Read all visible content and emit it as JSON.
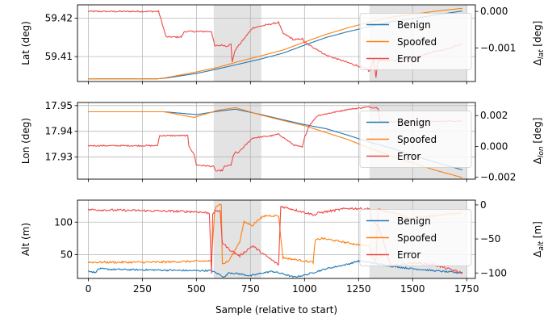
{
  "figure": {
    "xlabel": "Sample (relative to start)",
    "xlim": [
      -50,
      1790
    ],
    "xticks": [
      0,
      250,
      500,
      750,
      1000,
      1250,
      1500,
      1750
    ],
    "shaded_regions": [
      [
        580,
        800
      ],
      [
        1300,
        1750
      ]
    ],
    "colors": {
      "benign": "#1f77b4",
      "spoofed": "#ff7f0e",
      "error": "#ef4a4a",
      "shade": "#e3e3e3",
      "grid": "#b8b8b8"
    }
  },
  "chart_data": [
    {
      "type": "line",
      "ylabel": "Lat (deg)",
      "y2label": "Δ_lat [deg]",
      "ylim": [
        59.4035,
        59.4235
      ],
      "yticks": [
        59.41,
        59.42
      ],
      "ytick_labels": [
        "59.41",
        "59.42"
      ],
      "y2lim": [
        -0.00192,
        0.00018
      ],
      "y2ticks": [
        0.0,
        -0.001
      ],
      "y2tick_labels": [
        "0.000",
        "−0.001"
      ],
      "legend": [
        "Benign",
        "Spoofed",
        "Error"
      ],
      "legend_position": "right",
      "series": [
        {
          "name": "Benign",
          "axis": "left",
          "noise": 0,
          "x": [
            0,
            320,
            360,
            500,
            600,
            700,
            800,
            900,
            1000,
            1100,
            1200,
            1300,
            1400,
            1500,
            1600,
            1730
          ],
          "y": [
            59.4042,
            59.4042,
            59.4044,
            59.4056,
            59.4068,
            59.4081,
            59.4094,
            59.4109,
            59.413,
            59.415,
            59.4165,
            59.4178,
            59.4191,
            59.4199,
            59.4208,
            59.4219
          ]
        },
        {
          "name": "Spoofed",
          "axis": "left",
          "noise": 0,
          "x": [
            0,
            320,
            360,
            500,
            600,
            700,
            800,
            900,
            1000,
            1100,
            1200,
            1300,
            1400,
            1500,
            1600,
            1730
          ],
          "y": [
            59.4042,
            59.4042,
            59.4045,
            59.406,
            59.4072,
            59.4088,
            59.4102,
            59.4117,
            59.4138,
            59.4158,
            59.4175,
            59.419,
            59.4203,
            59.421,
            59.4218,
            59.4226
          ]
        },
        {
          "name": "Error",
          "axis": "right",
          "noise": 2e-05,
          "x": [
            0,
            325,
            335,
            360,
            430,
            445,
            570,
            585,
            620,
            640,
            660,
            665,
            680,
            760,
            880,
            900,
            930,
            950,
            990,
            1000,
            1060,
            1100,
            1290,
            1300,
            1320,
            1330,
            1340,
            1450,
            1500,
            1550,
            1600,
            1650,
            1700,
            1730
          ],
          "y": [
            0.0,
            0.0,
            -0.0002,
            -0.0007,
            -0.0007,
            -0.00055,
            -0.00055,
            -0.00095,
            -0.00092,
            -0.00095,
            -0.0009,
            -0.00138,
            -0.00105,
            -0.00045,
            -0.0003,
            -0.0006,
            -0.0007,
            -0.00078,
            -0.00075,
            -0.00085,
            -0.00105,
            -0.0012,
            -0.00158,
            -0.00165,
            -0.0013,
            -0.0018,
            -0.00135,
            -0.00132,
            -0.00128,
            -0.00118,
            -0.0011,
            -0.00105,
            -0.00095,
            -0.0009
          ]
        }
      ]
    },
    {
      "type": "line",
      "ylabel": "Lon (deg)",
      "y2label": "Δ_lon [deg]",
      "ylim": [
        17.9214,
        17.9512
      ],
      "yticks": [
        17.93,
        17.94,
        17.95
      ],
      "ytick_labels": [
        "17.93",
        "17.94",
        "17.95"
      ],
      "y2lim": [
        -0.00212,
        0.00285
      ],
      "y2ticks": [
        0.002,
        0.0,
        -0.002
      ],
      "y2tick_labels": [
        "0.002",
        "0.000",
        "−0.002"
      ],
      "legend": [
        "Benign",
        "Spoofed",
        "Error"
      ],
      "legend_position": "right",
      "series": [
        {
          "name": "Benign",
          "axis": "left",
          "noise": 0,
          "x": [
            0,
            350,
            500,
            600,
            680,
            800,
            900,
            1000,
            1100,
            1200,
            1300,
            1400,
            1500,
            1600,
            1730
          ],
          "y": [
            17.9476,
            17.9476,
            17.9465,
            17.9478,
            17.9486,
            17.9465,
            17.9445,
            17.9426,
            17.941,
            17.9385,
            17.9358,
            17.9335,
            17.9307,
            17.9281,
            17.925
          ]
        },
        {
          "name": "Spoofed",
          "axis": "left",
          "noise": 0,
          "x": [
            0,
            350,
            490,
            600,
            680,
            800,
            900,
            1000,
            1100,
            1200,
            1300,
            1400,
            1500,
            1600,
            1730
          ],
          "y": [
            17.9476,
            17.9476,
            17.9454,
            17.9482,
            17.9492,
            17.9463,
            17.9442,
            17.9422,
            17.9395,
            17.9368,
            17.9335,
            17.9305,
            17.9277,
            17.925,
            17.922
          ]
        },
        {
          "name": "Error",
          "axis": "right",
          "noise": 4e-05,
          "x": [
            0,
            320,
            330,
            460,
            465,
            490,
            500,
            580,
            590,
            620,
            630,
            660,
            670,
            680,
            690,
            760,
            850,
            880,
            920,
            950,
            990,
            1000,
            1020,
            1030,
            1060,
            1200,
            1290,
            1300,
            1340,
            1350,
            1500,
            1600,
            1700,
            1730
          ],
          "y": [
            5e-05,
            5e-05,
            0.0007,
            0.0007,
            5e-05,
            -0.00055,
            -0.0012,
            -0.0013,
            -0.0016,
            -0.00155,
            -0.0013,
            -0.0012,
            -0.00065,
            -0.00035,
            -0.00045,
            0.00055,
            0.0007,
            0.0008,
            0.0004,
            0.0001,
            -5e-05,
            0.00055,
            0.0013,
            0.0015,
            0.002,
            0.0024,
            0.00255,
            0.00255,
            0.0025,
            0.0016,
            0.0016,
            0.00162,
            0.00165,
            0.00165
          ]
        }
      ]
    },
    {
      "type": "line",
      "ylabel": "Alt (m)",
      "y2label": "Δ_alt [m]",
      "ylim": [
        13,
        134
      ],
      "yticks": [
        50,
        100
      ],
      "ytick_labels": [
        "50",
        "100"
      ],
      "y2lim": [
        -108,
        7
      ],
      "y2ticks": [
        0,
        -50,
        -100
      ],
      "y2tick_labels": [
        "0",
        "−50",
        "−100"
      ],
      "legend": [
        "Benign",
        "Spoofed",
        "Error"
      ],
      "legend_position": "right",
      "series": [
        {
          "name": "Benign",
          "axis": "left",
          "noise": 1.2,
          "x": [
            0,
            30,
            50,
            100,
            500,
            570,
            600,
            630,
            650,
            700,
            750,
            800,
            850,
            900,
            950,
            1000,
            1100,
            1200,
            1250,
            1300,
            1400,
            1500,
            1600,
            1700,
            1730
          ],
          "y": [
            25,
            22,
            28,
            27,
            25,
            25,
            20,
            15,
            22,
            20,
            17,
            21,
            24,
            20,
            15,
            18,
            28,
            35,
            40,
            38,
            32,
            28,
            25,
            22,
            22
          ]
        },
        {
          "name": "Spoofed",
          "axis": "left",
          "noise": 1.5,
          "x": [
            0,
            300,
            570,
            585,
            590,
            615,
            620,
            650,
            700,
            720,
            760,
            790,
            820,
            880,
            900,
            1000,
            1040,
            1050,
            1080,
            1200,
            1250,
            1300,
            1310,
            1330,
            1340,
            1400,
            1500,
            1600,
            1730
          ],
          "y": [
            38,
            38,
            40,
            120,
            125,
            128,
            35,
            40,
            70,
            100,
            95,
            105,
            110,
            110,
            45,
            40,
            38,
            72,
            75,
            68,
            65,
            63,
            48,
            40,
            120,
            115,
            105,
            110,
            115
          ]
        },
        {
          "name": "Error",
          "axis": "right",
          "noise": 1.6,
          "x": [
            0,
            500,
            560,
            570,
            575,
            590,
            610,
            620,
            650,
            700,
            760,
            800,
            880,
            890,
            1050,
            1060,
            1100,
            1200,
            1300,
            1310,
            1330,
            1340,
            1400,
            1500,
            1600,
            1730
          ],
          "y": [
            -7,
            -10,
            -12,
            -100,
            -15,
            -8,
            -10,
            -55,
            -65,
            -75,
            -60,
            -70,
            -88,
            -2,
            -15,
            -12,
            -10,
            -5,
            -6,
            -22,
            -28,
            -30,
            -90,
            -85,
            -88,
            -100
          ]
        }
      ]
    }
  ]
}
